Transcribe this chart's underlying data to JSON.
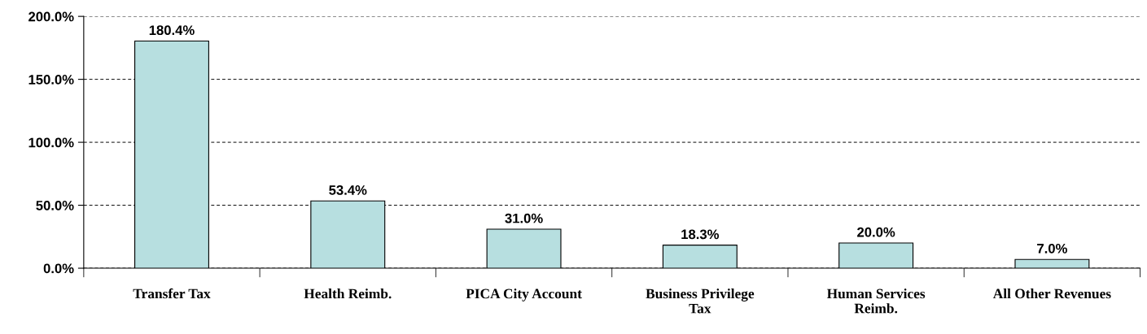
{
  "chart_data": {
    "type": "bar",
    "categories": [
      "Transfer Tax",
      "Health Reimb.",
      "PICA City Account",
      "Business Privilege\nTax",
      "Human Services\nReimb.",
      "All Other Revenues"
    ],
    "values": [
      180.4,
      53.4,
      31.0,
      18.3,
      20.0,
      7.0
    ],
    "value_labels": [
      "180.4%",
      "53.4%",
      "31.0%",
      "18.3%",
      "20.0%",
      "7.0%"
    ],
    "color": "#b7dfe0",
    "ylim": [
      0,
      200
    ],
    "yticks": [
      {
        "value": 0,
        "label": "0.0%"
      },
      {
        "value": 50,
        "label": "50.0%"
      },
      {
        "value": 100,
        "label": "100.0%"
      },
      {
        "value": 150,
        "label": "150.0%"
      },
      {
        "value": 200,
        "label": "200.0%"
      }
    ],
    "grid": "y"
  }
}
